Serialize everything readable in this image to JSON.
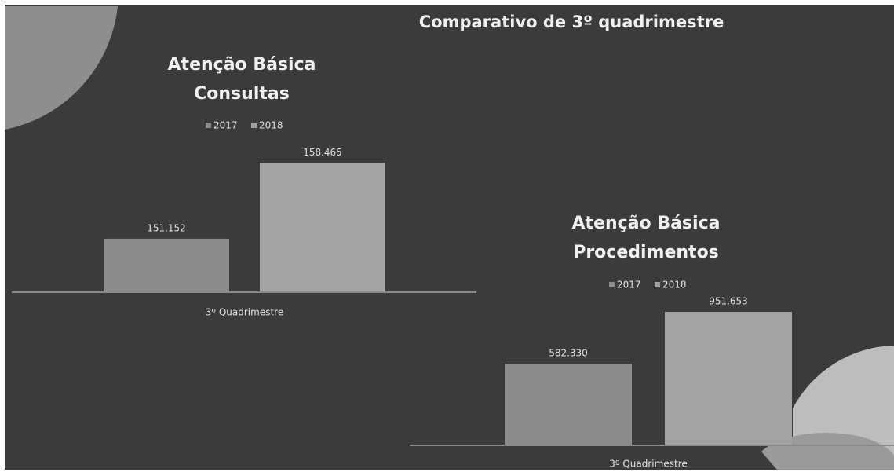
{
  "title": "Comparativo de 3º quadrimestre",
  "chart_data": [
    {
      "type": "bar",
      "title": "Atenção Básica",
      "subtitle": "Consultas",
      "categories": [
        "3º Quadrimestre"
      ],
      "series": [
        {
          "name": "2017",
          "color": "#8c8c8c",
          "values": [
            151152
          ],
          "value_labels": [
            "151.152"
          ]
        },
        {
          "name": "2018",
          "color": "#a3a3a3",
          "values": [
            158465
          ],
          "value_labels": [
            "158.465"
          ]
        }
      ],
      "ylim": [
        146000,
        160000
      ]
    },
    {
      "type": "bar",
      "title": "Atenção Básica",
      "subtitle": "Procedimentos",
      "categories": [
        "3º Quadrimestre"
      ],
      "series": [
        {
          "name": "2017",
          "color": "#8c8c8c",
          "values": [
            582330
          ],
          "value_labels": [
            "582.330"
          ]
        },
        {
          "name": "2018",
          "color": "#a3a3a3",
          "values": [
            951653
          ],
          "value_labels": [
            "951.653"
          ]
        }
      ],
      "ylim": [
        0,
        1000000
      ]
    }
  ]
}
